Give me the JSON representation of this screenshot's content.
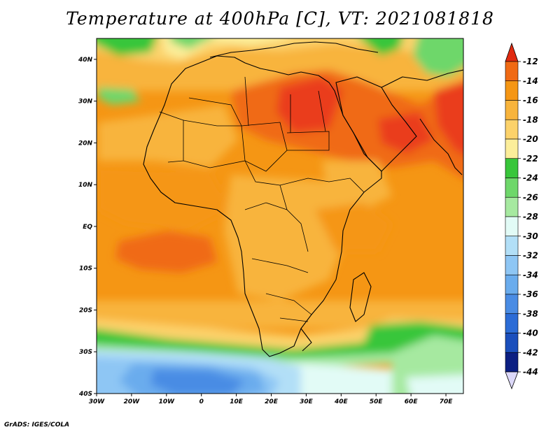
{
  "title": "Temperature at 400hPa [C], VT: 2021081818",
  "credit": "GrADS: IGES/COLA",
  "map": {
    "lon_labels": [
      "30W",
      "20W",
      "10W",
      "0",
      "10E",
      "20E",
      "30E",
      "40E",
      "50E",
      "60E",
      "70E"
    ],
    "lat_labels": [
      "40N",
      "30N",
      "20N",
      "10N",
      "EQ",
      "10S",
      "20S",
      "30S",
      "40S"
    ]
  },
  "colorbar": {
    "labels": [
      "-12",
      "-14",
      "-16",
      "-18",
      "-20",
      "-22",
      "-24",
      "-26",
      "-28",
      "-30",
      "-32",
      "-34",
      "-36",
      "-38",
      "-40",
      "-42",
      "-44"
    ],
    "colors": [
      "#ea3c1a",
      "#f06a14",
      "#f59614",
      "#f8b43c",
      "#fcd26a",
      "#fcee9a",
      "#38c63a",
      "#6ed76a",
      "#a6e9a0",
      "#e2fbf6",
      "#b2dff7",
      "#8ec6f4",
      "#6aaced",
      "#4a8ce4",
      "#2c6cd6",
      "#1b4fbc",
      "#0c1f82"
    ],
    "over_color": "#e02a10",
    "under_color": "#dcd8f8"
  },
  "chart_data": {
    "type": "heatmap",
    "title": "Temperature at 400hPa [C], VT: 2021081818",
    "variable": "Temperature at 400hPa",
    "unit": "C",
    "valid_time": "2021081818",
    "lon_range": [
      "30W",
      "75E"
    ],
    "lat_range": [
      "40S",
      "45N"
    ],
    "color_levels": [
      -44,
      -42,
      -40,
      -38,
      -36,
      -34,
      -32,
      -30,
      -28,
      -26,
      -24,
      -22,
      -20,
      -18,
      -16,
      -14,
      -12
    ]
  }
}
